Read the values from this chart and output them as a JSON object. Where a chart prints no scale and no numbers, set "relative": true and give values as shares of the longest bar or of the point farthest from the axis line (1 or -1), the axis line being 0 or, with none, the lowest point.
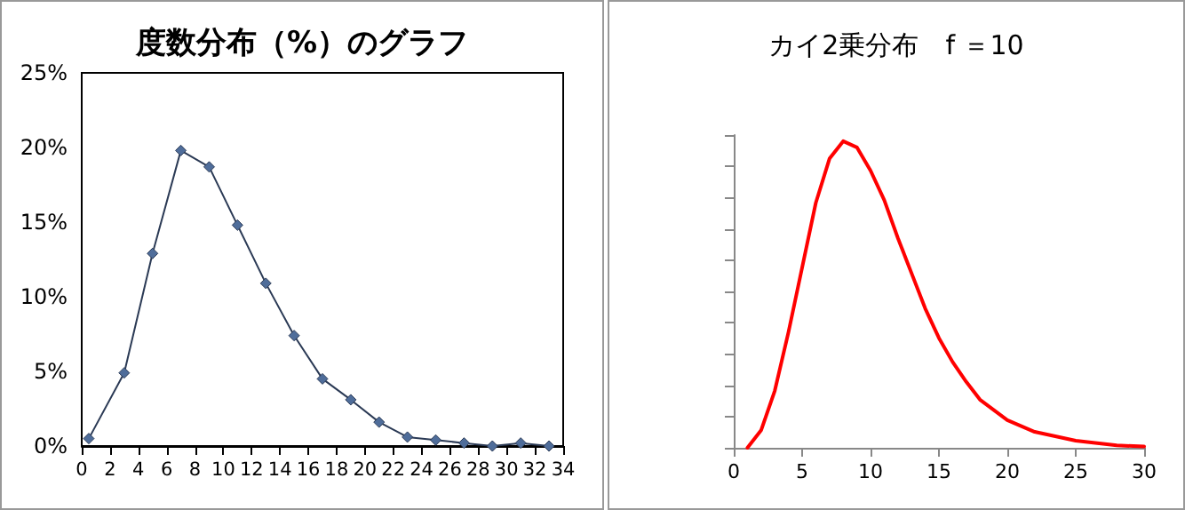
{
  "chart_data": [
    {
      "type": "line",
      "title": "度数分布（%）のグラフ",
      "x": [
        0.5,
        3,
        5,
        7,
        9,
        11,
        13,
        15,
        17,
        19,
        21,
        23,
        25,
        27,
        29,
        31,
        33
      ],
      "series": [
        {
          "color": "#2b3a55",
          "values": [
            0.5,
            4.9,
            12.9,
            19.8,
            18.7,
            14.8,
            10.9,
            7.4,
            4.5,
            3.1,
            1.6,
            0.6,
            0.4,
            0.2,
            0,
            0.2,
            0
          ]
        }
      ],
      "xlim": [
        0,
        34
      ],
      "xticks": [
        0,
        2,
        4,
        6,
        8,
        10,
        12,
        14,
        16,
        18,
        20,
        22,
        24,
        26,
        28,
        30,
        32,
        34
      ],
      "ylim": [
        0,
        25
      ],
      "yticks": [
        {
          "value": 0,
          "label": "0%"
        },
        {
          "value": 5,
          "label": "5%"
        },
        {
          "value": 10,
          "label": "10%"
        },
        {
          "value": 15,
          "label": "15%"
        },
        {
          "value": 20,
          "label": "20%"
        },
        {
          "value": 25,
          "label": "25%"
        }
      ],
      "grid": false,
      "marker": "diamond",
      "line_style": "solid"
    },
    {
      "type": "line",
      "title": "カイ2乗分布　f ＝10",
      "relative": true,
      "x": [
        1,
        2,
        3,
        4,
        5,
        6,
        7,
        8,
        9,
        10,
        11,
        12,
        13,
        14,
        15,
        16,
        17,
        18,
        20,
        22,
        25,
        28,
        30
      ],
      "series": [
        {
          "color": "#ff0000",
          "values": [
            0,
            0.057,
            0.186,
            0.377,
            0.588,
            0.799,
            0.943,
            1,
            0.98,
            0.904,
            0.808,
            0.684,
            0.569,
            0.454,
            0.358,
            0.28,
            0.215,
            0.157,
            0.09,
            0.052,
            0.023,
            0.008,
            0.004
          ]
        }
      ],
      "xlim": [
        0,
        30
      ],
      "xticks": [
        0,
        5,
        10,
        15,
        20,
        25,
        30
      ],
      "tick_labels": "x",
      "grid": false,
      "marker": "none",
      "line_style": "solid"
    }
  ]
}
